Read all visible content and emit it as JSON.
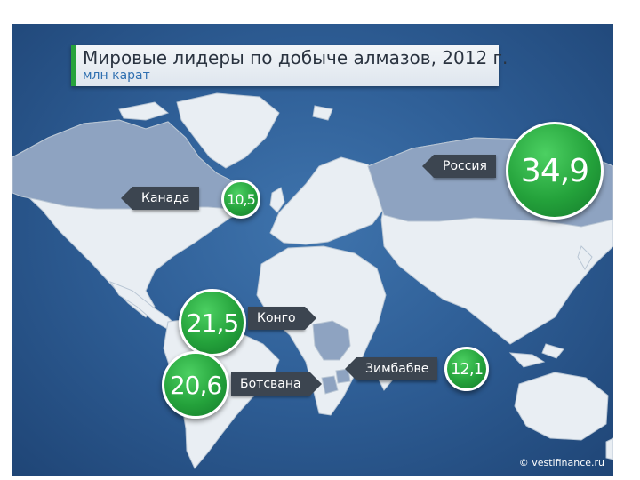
{
  "title": "Мировые лидеры по добыче алмазов, 2012 г.",
  "subtitle": "млн карат",
  "copyright": "© vestifinance.ru",
  "colors": {
    "ocean": "#2f5f97",
    "land": "#e9eef3",
    "highlight": "#8ea3c1",
    "bubble": "#24a23b",
    "tag": "#3c4550",
    "title_accent": "#27a33c"
  },
  "countries": [
    {
      "name": "Россия",
      "value": "34,9"
    },
    {
      "name": "Канада",
      "value": "10,5"
    },
    {
      "name": "Конго",
      "value": "21,5"
    },
    {
      "name": "Ботсвана",
      "value": "20,6"
    },
    {
      "name": "Зимбабве",
      "value": "12,1"
    }
  ]
}
